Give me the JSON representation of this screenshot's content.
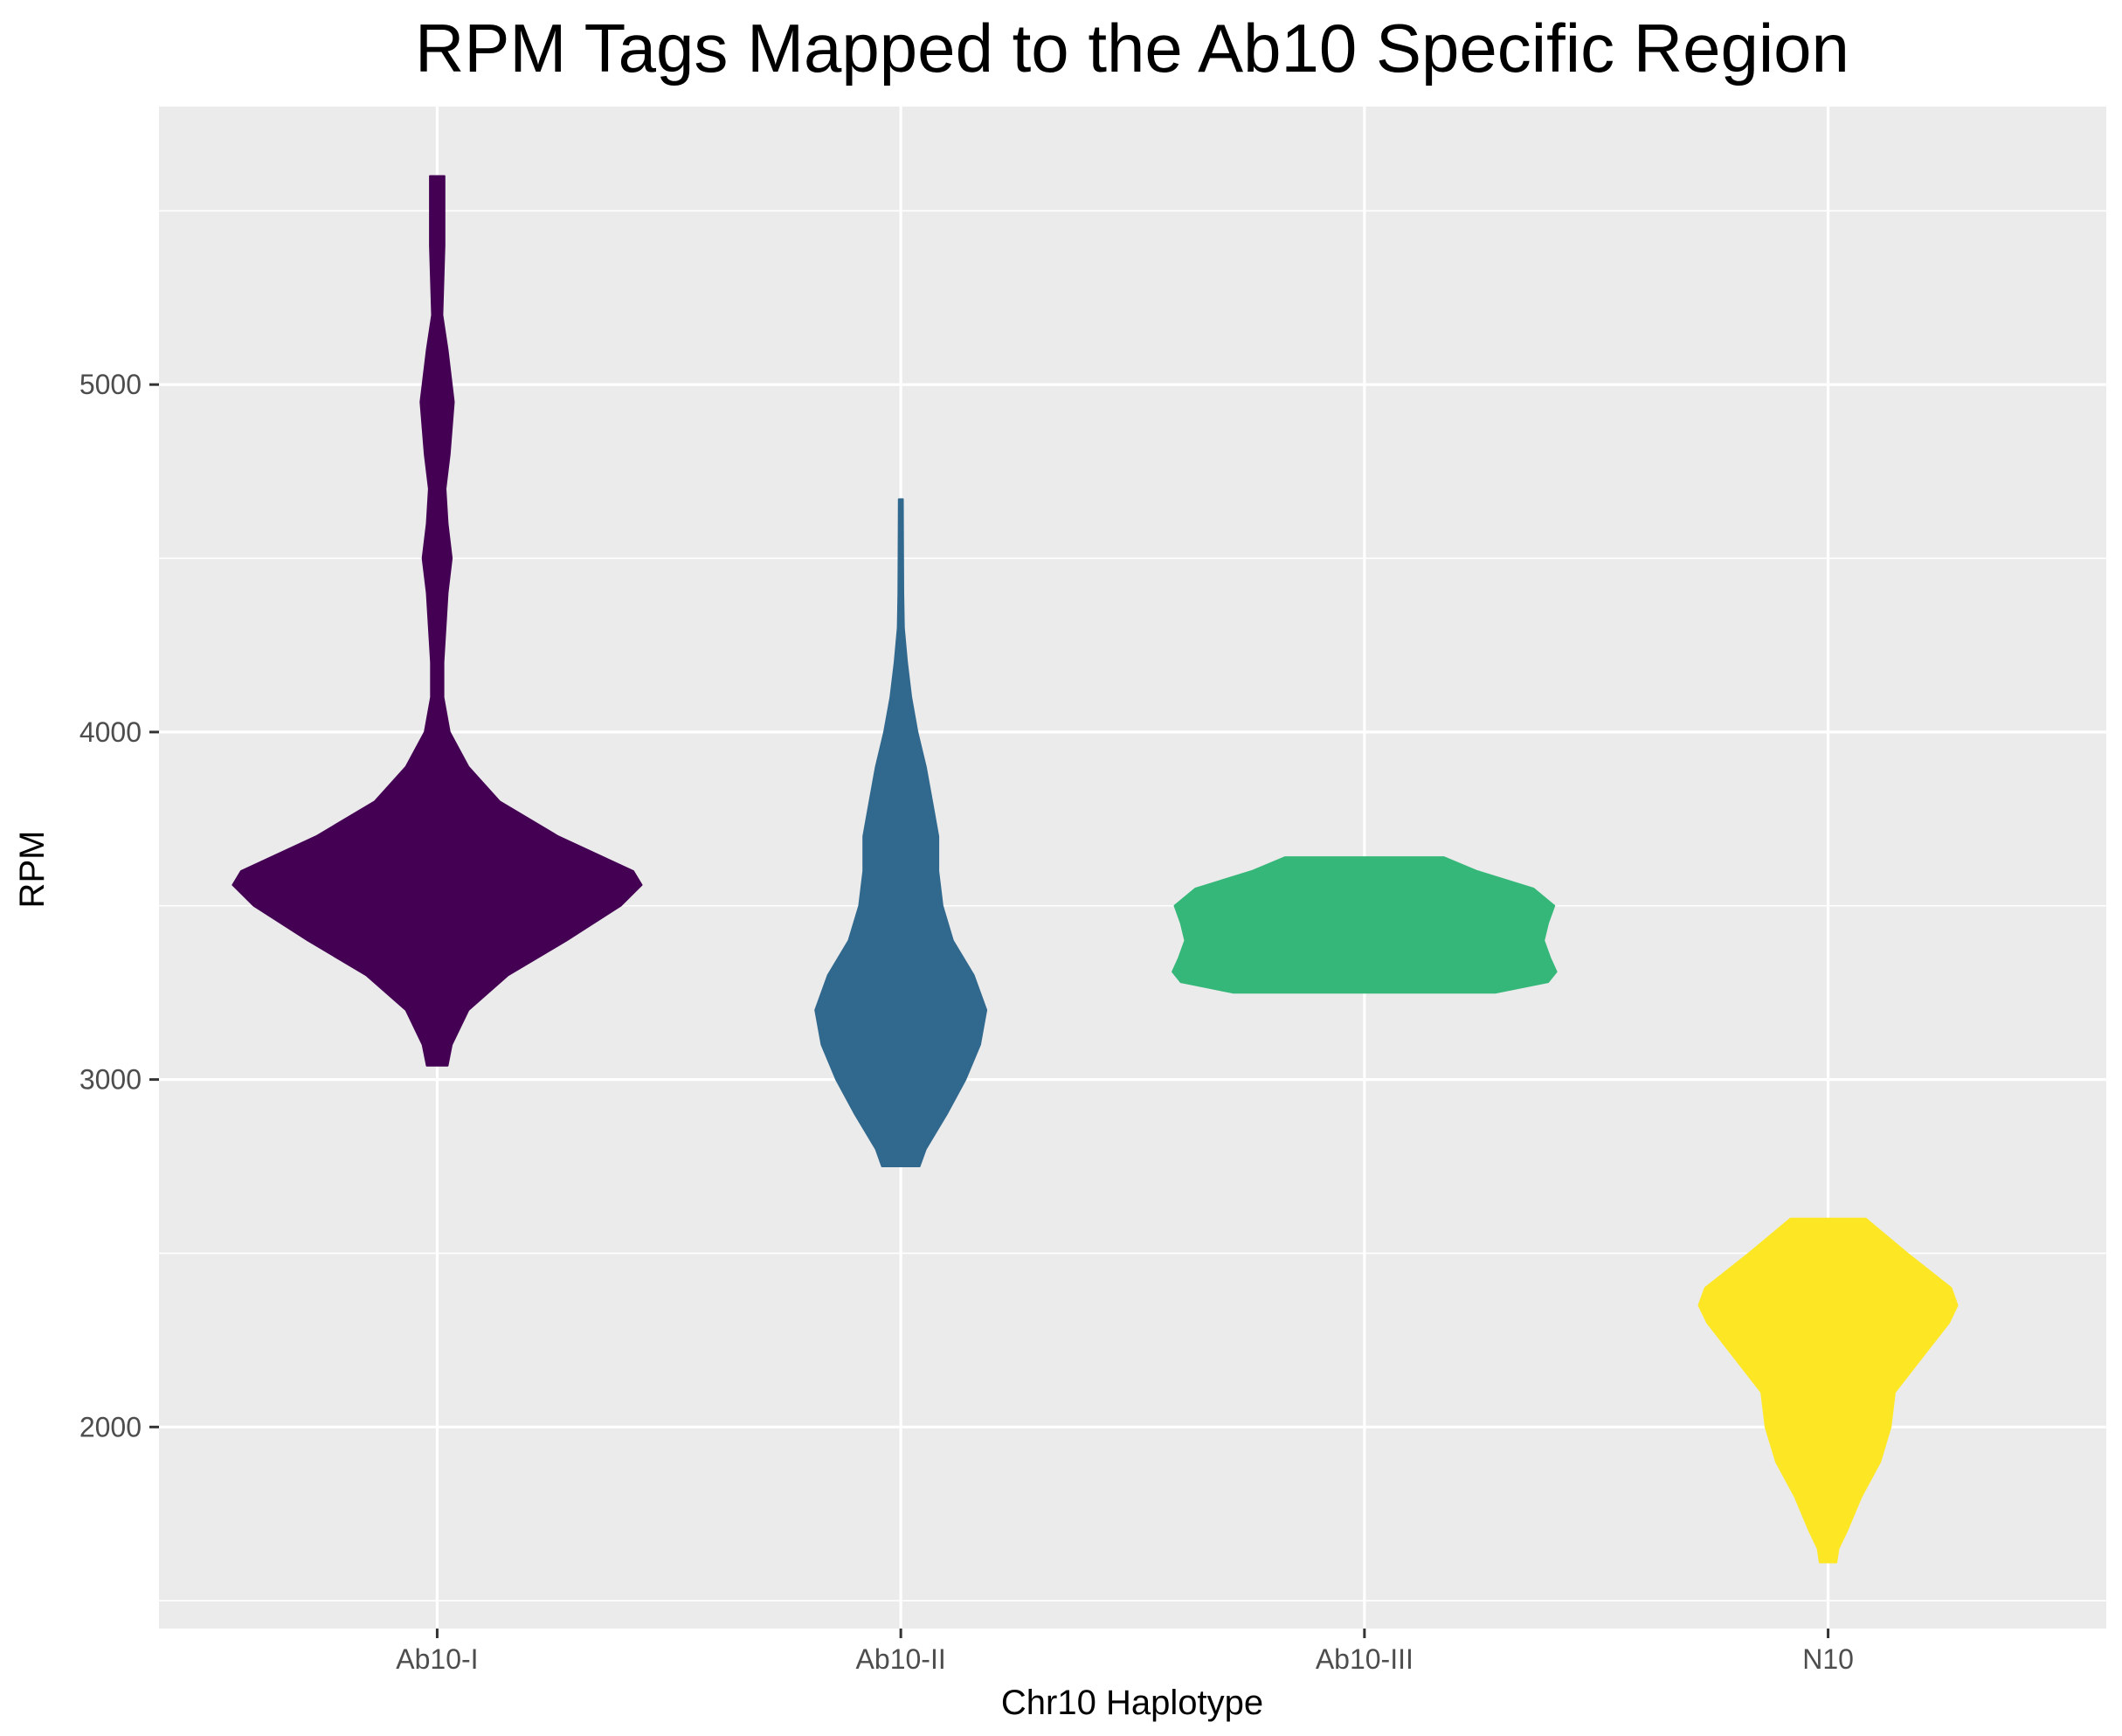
{
  "chart_data": {
    "type": "violin",
    "title": "RPM Tags Mapped to the Ab10 Specific Region",
    "xlabel": "Chr10 Haplotype",
    "ylabel": "RPM",
    "ylim": [
      1420,
      5800
    ],
    "yticks": [
      2000,
      3000,
      4000,
      5000
    ],
    "ytick_labels": [
      "2000",
      "3000",
      "4000",
      "5000"
    ],
    "categories": [
      "Ab10-I",
      "Ab10-II",
      "Ab10-III",
      "N10"
    ],
    "grid": true,
    "legend": "none",
    "panel_background": "#ebebeb",
    "grid_color": "#ffffff",
    "series": [
      {
        "category": "Ab10-I",
        "color": "#440154",
        "min": 3040,
        "max": 5600,
        "profile": [
          [
            3040,
            0.05
          ],
          [
            3100,
            0.07
          ],
          [
            3200,
            0.15
          ],
          [
            3300,
            0.34
          ],
          [
            3400,
            0.62
          ],
          [
            3500,
            0.88
          ],
          [
            3560,
            0.98
          ],
          [
            3600,
            0.94
          ],
          [
            3700,
            0.58
          ],
          [
            3800,
            0.3
          ],
          [
            3900,
            0.15
          ],
          [
            4000,
            0.06
          ],
          [
            4100,
            0.03
          ],
          [
            4200,
            0.03
          ],
          [
            4300,
            0.04
          ],
          [
            4400,
            0.05
          ],
          [
            4500,
            0.07
          ],
          [
            4600,
            0.05
          ],
          [
            4700,
            0.04
          ],
          [
            4800,
            0.06
          ],
          [
            4950,
            0.08
          ],
          [
            5100,
            0.05
          ],
          [
            5200,
            0.025
          ],
          [
            5300,
            0.03
          ],
          [
            5400,
            0.035
          ],
          [
            5500,
            0.035
          ],
          [
            5600,
            0.035
          ]
        ]
      },
      {
        "category": "Ab10-II",
        "color": "#31688e",
        "min": 2750,
        "max": 4670,
        "profile": [
          [
            2750,
            0.09
          ],
          [
            2800,
            0.12
          ],
          [
            2900,
            0.22
          ],
          [
            3000,
            0.31
          ],
          [
            3100,
            0.38
          ],
          [
            3200,
            0.41
          ],
          [
            3300,
            0.35
          ],
          [
            3400,
            0.25
          ],
          [
            3500,
            0.2
          ],
          [
            3600,
            0.18
          ],
          [
            3700,
            0.18
          ],
          [
            3800,
            0.15
          ],
          [
            3900,
            0.12
          ],
          [
            4000,
            0.08
          ],
          [
            4100,
            0.05
          ],
          [
            4200,
            0.03
          ],
          [
            4300,
            0.015
          ],
          [
            4400,
            0.012
          ],
          [
            4500,
            0.011
          ],
          [
            4670,
            0.01
          ]
        ]
      },
      {
        "category": "Ab10-III",
        "color": "#35b779",
        "min": 3250,
        "max": 3640,
        "profile": [
          [
            3250,
            0.63
          ],
          [
            3280,
            0.88
          ],
          [
            3310,
            0.92
          ],
          [
            3350,
            0.89
          ],
          [
            3400,
            0.86
          ],
          [
            3450,
            0.88
          ],
          [
            3500,
            0.91
          ],
          [
            3550,
            0.81
          ],
          [
            3600,
            0.54
          ],
          [
            3640,
            0.38
          ]
        ]
      },
      {
        "category": "N10",
        "color": "#fde725",
        "min": 1610,
        "max": 2600,
        "profile": [
          [
            1610,
            0.04
          ],
          [
            1650,
            0.05
          ],
          [
            1700,
            0.09
          ],
          [
            1800,
            0.16
          ],
          [
            1900,
            0.25
          ],
          [
            2000,
            0.3
          ],
          [
            2100,
            0.32
          ],
          [
            2200,
            0.45
          ],
          [
            2300,
            0.58
          ],
          [
            2350,
            0.62
          ],
          [
            2400,
            0.59
          ],
          [
            2500,
            0.38
          ],
          [
            2600,
            0.18
          ]
        ]
      }
    ]
  }
}
